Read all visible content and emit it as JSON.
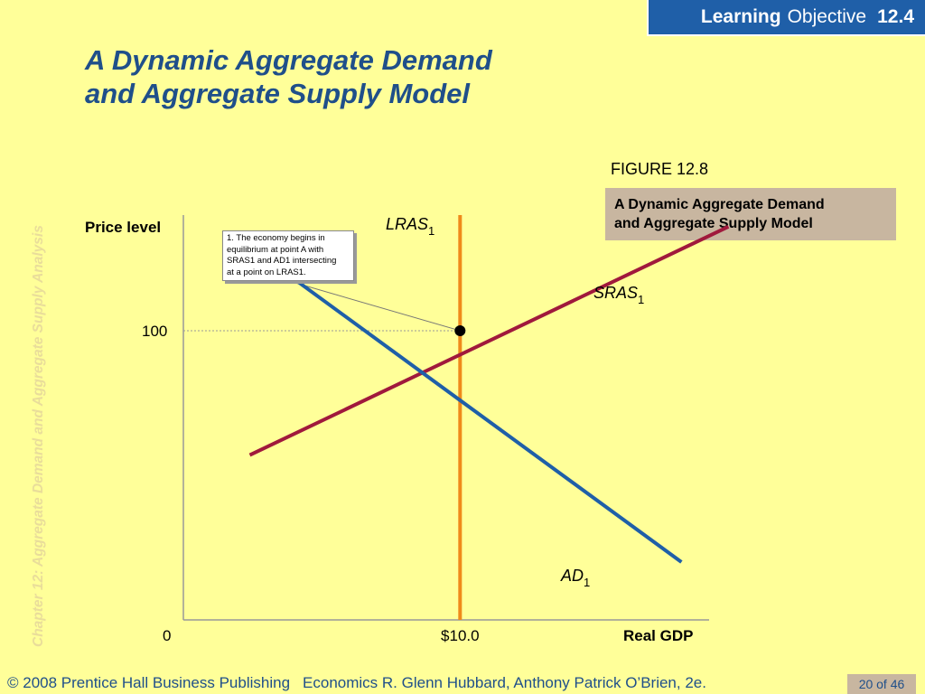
{
  "header": {
    "badge_bold": "Learning",
    "badge_text": "Objective",
    "badge_number": "12.4"
  },
  "slide": {
    "title_line1": "A Dynamic Aggregate Demand",
    "title_line2": "and Aggregate Supply Model",
    "side_label": "Chapter 12:  Aggregate Demand and Aggregate Supply Analysis"
  },
  "figure": {
    "label": "FIGURE 12.8",
    "caption_line1": "A Dynamic Aggregate Demand",
    "caption_line2": "and Aggregate Supply Model"
  },
  "callout": {
    "line1": "1.  The economy begins in",
    "line2": "equilibrium at point A with",
    "line3": "SRAS1 and AD1 intersecting",
    "line4": "at a point on LRAS1."
  },
  "chart_data": {
    "type": "line",
    "ylabel": "Price level",
    "xlabel": "Real GDP",
    "origin_label": "0",
    "x_tick_label": "$10.0",
    "y_tick_label": "100",
    "grid": false,
    "x_equilibrium": 10.0,
    "y_equilibrium": 100,
    "xlim": [
      0,
      19
    ],
    "ylim": [
      0,
      140
    ],
    "series": [
      {
        "name": "LRAS",
        "subscript": "1",
        "color": "#ef8a1a",
        "x": [
          10.0,
          10.0
        ],
        "y": [
          0,
          140
        ]
      },
      {
        "name": "SRAS",
        "subscript": "1",
        "color": "#a0193c",
        "x": [
          2.4,
          19.7
        ],
        "y": [
          57,
          136
        ]
      },
      {
        "name": "AD",
        "subscript": "1",
        "color": "#1f5fa8",
        "x": [
          1.7,
          18.0
        ],
        "y": [
          134,
          20
        ]
      }
    ],
    "points": [
      {
        "x": 10.0,
        "y": 100
      }
    ]
  },
  "footer": {
    "copyright": "© 2008 Prentice Hall Business Publishing",
    "book": "Economics  R. Glenn Hubbard, Anthony Patrick O’Brien, 2e.",
    "page": "20 of 46"
  }
}
